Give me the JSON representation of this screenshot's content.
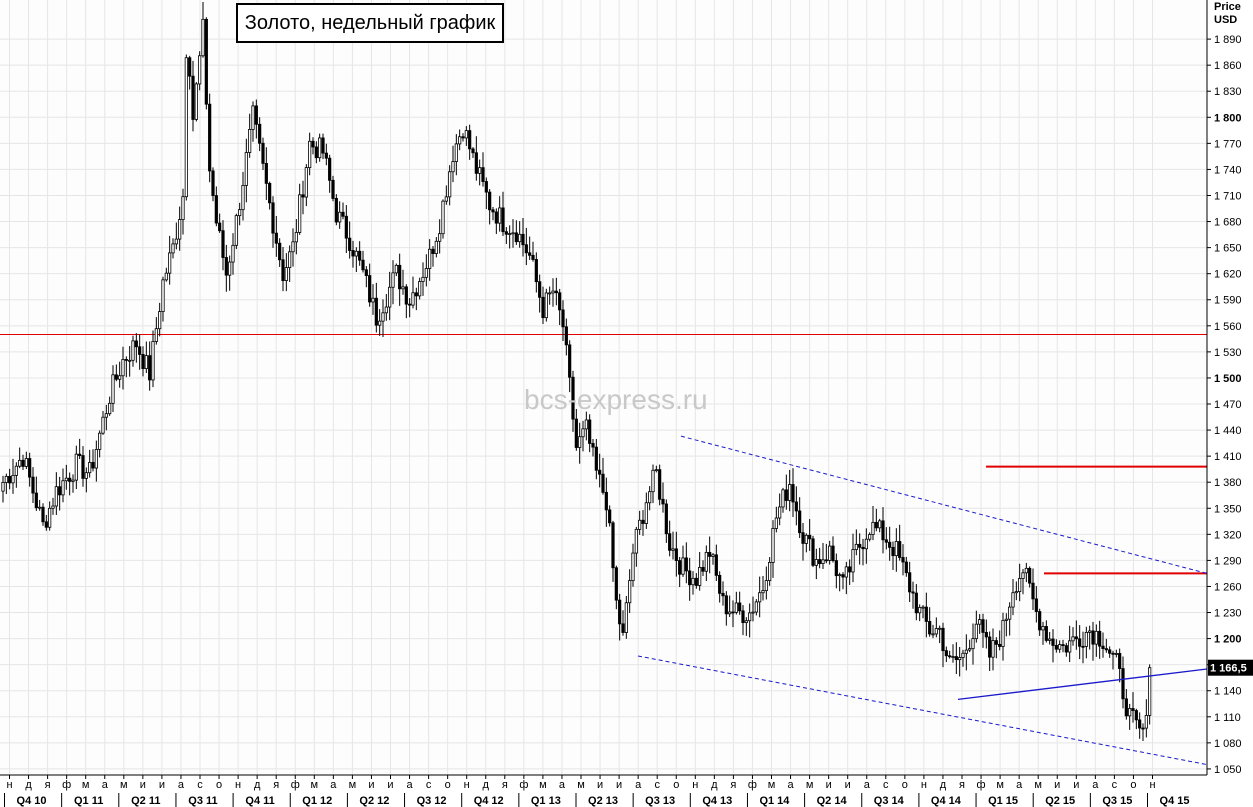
{
  "title": "Золото, недельный график",
  "watermark": "bcs-express.ru",
  "axis": {
    "price_header_1": "Price",
    "price_header_2": "USD",
    "current_price_label": "1 166,5"
  },
  "colors": {
    "up": "#ffffff",
    "down": "#000000",
    "support_line": "#e00000",
    "channel": "#1a1acc",
    "grid": "#e6e6e6"
  },
  "chart_data": {
    "type": "candlestick",
    "y_range": [
      1043,
      1935
    ],
    "y_ticks": [
      {
        "value": 1050,
        "label": "1 050",
        "bold": false
      },
      {
        "value": 1080,
        "label": "1 080",
        "bold": false
      },
      {
        "value": 1110,
        "label": "1 110",
        "bold": false
      },
      {
        "value": 1140,
        "label": "1 140",
        "bold": false
      },
      {
        "value": 1170,
        "label": "1 170",
        "bold": false
      },
      {
        "value": 1200,
        "label": "1 200",
        "bold": true
      },
      {
        "value": 1230,
        "label": "1 230",
        "bold": false
      },
      {
        "value": 1260,
        "label": "1 260",
        "bold": false
      },
      {
        "value": 1290,
        "label": "1 290",
        "bold": false
      },
      {
        "value": 1320,
        "label": "1 320",
        "bold": false
      },
      {
        "value": 1350,
        "label": "1 350",
        "bold": false
      },
      {
        "value": 1380,
        "label": "1 380",
        "bold": false
      },
      {
        "value": 1410,
        "label": "1 410",
        "bold": false
      },
      {
        "value": 1440,
        "label": "1 440",
        "bold": false
      },
      {
        "value": 1470,
        "label": "1 470",
        "bold": false
      },
      {
        "value": 1500,
        "label": "1 500",
        "bold": true
      },
      {
        "value": 1530,
        "label": "1 530",
        "bold": false
      },
      {
        "value": 1560,
        "label": "1 560",
        "bold": false
      },
      {
        "value": 1590,
        "label": "1 590",
        "bold": false
      },
      {
        "value": 1620,
        "label": "1 620",
        "bold": false
      },
      {
        "value": 1650,
        "label": "1 650",
        "bold": false
      },
      {
        "value": 1680,
        "label": "1 680",
        "bold": false
      },
      {
        "value": 1710,
        "label": "1 710",
        "bold": false
      },
      {
        "value": 1740,
        "label": "1 740",
        "bold": false
      },
      {
        "value": 1770,
        "label": "1 770",
        "bold": false
      },
      {
        "value": 1800,
        "label": "1 800",
        "bold": true
      },
      {
        "value": 1830,
        "label": "1 830",
        "bold": false
      },
      {
        "value": 1860,
        "label": "1 860",
        "bold": false
      },
      {
        "value": 1890,
        "label": "1 890",
        "bold": false
      }
    ],
    "x_months": [
      "н",
      "д",
      "я",
      "ф",
      "м",
      "а",
      "м",
      "и",
      "и",
      "а",
      "с",
      "о",
      "н",
      "д",
      "я",
      "ф",
      "м",
      "а",
      "м",
      "и",
      "и",
      "а",
      "с",
      "о",
      "н",
      "д",
      "я",
      "ф",
      "м",
      "а",
      "м",
      "и",
      "и",
      "а",
      "с",
      "о",
      "н",
      "д",
      "я",
      "ф",
      "м",
      "а",
      "м",
      "и",
      "и",
      "а",
      "с",
      "о",
      "н",
      "д",
      "я",
      "ф",
      "м",
      "а",
      "м",
      "и",
      "и",
      "а",
      "с",
      "о",
      "н"
    ],
    "x_quarters": [
      "Q4 10",
      "Q1 11",
      "Q2 11",
      "Q3 11",
      "Q4 11",
      "Q1 12",
      "Q2 12",
      "Q3 12",
      "Q4 12",
      "Q1 13",
      "Q2 13",
      "Q3 13",
      "Q4 13",
      "Q1 14",
      "Q2 14",
      "Q3 14",
      "Q4 14",
      "Q1 15",
      "Q2 15",
      "Q3 15",
      "Q4 15"
    ],
    "current_price": 1166.5,
    "horizontal_levels": [
      1550,
      1398,
      1275
    ],
    "channel": {
      "upper": [
        [
          1433,
          1275
        ]
      ],
      "lower": [
        [
          1180,
          1055
        ]
      ],
      "support": [
        [
          1130,
          1165
        ]
      ]
    },
    "anchors": [
      [
        0,
        1380
      ],
      [
        6,
        1410
      ],
      [
        12,
        1330
      ],
      [
        16,
        1370
      ],
      [
        22,
        1400
      ],
      [
        26,
        1390
      ],
      [
        32,
        1480
      ],
      [
        36,
        1520
      ],
      [
        40,
        1540
      ],
      [
        44,
        1505
      ],
      [
        48,
        1610
      ],
      [
        51,
        1650
      ],
      [
        54,
        1710
      ],
      [
        55,
        1880
      ],
      [
        56,
        1860
      ],
      [
        57,
        1800
      ],
      [
        60,
        1900
      ],
      [
        62,
        1740
      ],
      [
        64,
        1680
      ],
      [
        67,
        1620
      ],
      [
        70,
        1680
      ],
      [
        75,
        1800
      ],
      [
        79,
        1720
      ],
      [
        84,
        1620
      ],
      [
        87,
        1650
      ],
      [
        92,
        1770
      ],
      [
        96,
        1760
      ],
      [
        100,
        1690
      ],
      [
        104,
        1660
      ],
      [
        108,
        1620
      ],
      [
        112,
        1570
      ],
      [
        118,
        1620
      ],
      [
        122,
        1590
      ],
      [
        128,
        1640
      ],
      [
        131,
        1680
      ],
      [
        135,
        1760
      ],
      [
        138,
        1790
      ],
      [
        142,
        1740
      ],
      [
        146,
        1700
      ],
      [
        150,
        1680
      ],
      [
        154,
        1670
      ],
      [
        158,
        1640
      ],
      [
        162,
        1580
      ],
      [
        165,
        1600
      ],
      [
        168,
        1560
      ],
      [
        172,
        1420
      ],
      [
        175,
        1440
      ],
      [
        178,
        1390
      ],
      [
        181,
        1360
      ],
      [
        184,
        1240
      ],
      [
        186,
        1200
      ],
      [
        189,
        1300
      ],
      [
        193,
        1360
      ],
      [
        196,
        1390
      ],
      [
        200,
        1310
      ],
      [
        204,
        1280
      ],
      [
        208,
        1270
      ],
      [
        212,
        1300
      ],
      [
        216,
        1240
      ],
      [
        220,
        1230
      ],
      [
        224,
        1230
      ],
      [
        228,
        1260
      ],
      [
        232,
        1340
      ],
      [
        236,
        1380
      ],
      [
        240,
        1320
      ],
      [
        244,
        1290
      ],
      [
        248,
        1300
      ],
      [
        252,
        1260
      ],
      [
        256,
        1300
      ],
      [
        260,
        1330
      ],
      [
        264,
        1320
      ],
      [
        268,
        1300
      ],
      [
        272,
        1260
      ],
      [
        275,
        1230
      ],
      [
        278,
        1210
      ],
      [
        281,
        1210
      ],
      [
        284,
        1170
      ],
      [
        288,
        1180
      ],
      [
        292,
        1220
      ],
      [
        296,
        1180
      ],
      [
        300,
        1210
      ],
      [
        303,
        1260
      ],
      [
        306,
        1280
      ],
      [
        310,
        1230
      ],
      [
        314,
        1200
      ],
      [
        318,
        1190
      ],
      [
        322,
        1200
      ],
      [
        326,
        1210
      ],
      [
        330,
        1200
      ],
      [
        334,
        1170
      ],
      [
        338,
        1110
      ],
      [
        341,
        1090
      ],
      [
        343,
        1100
      ],
      [
        344,
        1166
      ]
    ]
  }
}
